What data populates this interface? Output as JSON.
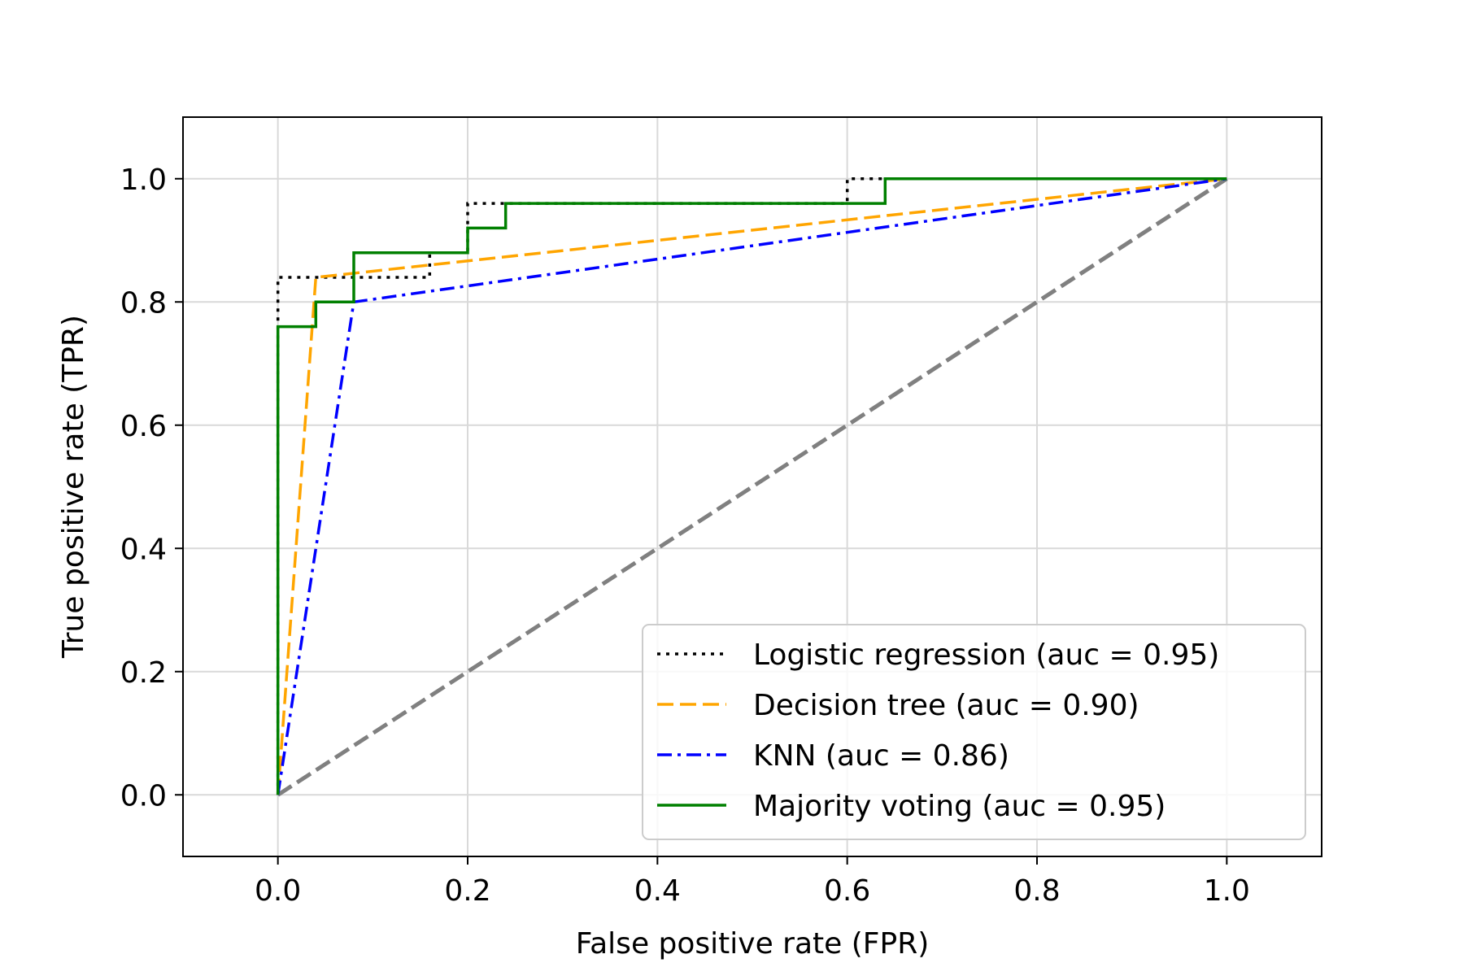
{
  "chart_data": {
    "type": "line",
    "title": "",
    "xlabel": "False positive rate (FPR)",
    "ylabel": "True positive rate (TPR)",
    "xlim": [
      -0.1,
      1.1
    ],
    "ylim": [
      -0.1,
      1.1
    ],
    "xticks": [
      0.0,
      0.2,
      0.4,
      0.6,
      0.8,
      1.0
    ],
    "yticks": [
      0.0,
      0.2,
      0.4,
      0.6,
      0.8,
      1.0
    ],
    "xtick_labels": [
      "0.0",
      "0.2",
      "0.4",
      "0.6",
      "0.8",
      "1.0"
    ],
    "ytick_labels": [
      "0.0",
      "0.2",
      "0.4",
      "0.6",
      "0.8",
      "1.0"
    ],
    "grid": true,
    "legend_position": "lower-right",
    "series": [
      {
        "name": "Logistic regression (auc = 0.95)",
        "color": "#000000",
        "style": "dotted",
        "x": [
          0.0,
          0.0,
          0.0,
          0.16,
          0.16,
          0.2,
          0.2,
          0.6,
          0.6,
          1.0
        ],
        "y": [
          0.0,
          0.76,
          0.84,
          0.84,
          0.88,
          0.88,
          0.96,
          0.96,
          1.0,
          1.0
        ]
      },
      {
        "name": "Decision tree (auc = 0.90)",
        "color": "#FFA500",
        "style": "dashed",
        "x": [
          0.0,
          0.04,
          1.0
        ],
        "y": [
          0.0,
          0.84,
          1.0
        ]
      },
      {
        "name": "KNN (auc = 0.86)",
        "color": "#0000FF",
        "style": "dashdot",
        "x": [
          0.0,
          0.08,
          1.0
        ],
        "y": [
          0.0,
          0.8,
          1.0
        ]
      },
      {
        "name": "Majority voting (auc = 0.95)",
        "color": "#008000",
        "style": "solid",
        "x": [
          0.0,
          0.0,
          0.04,
          0.04,
          0.08,
          0.08,
          0.2,
          0.2,
          0.24,
          0.24,
          0.64,
          0.64,
          1.0
        ],
        "y": [
          0.0,
          0.76,
          0.76,
          0.8,
          0.8,
          0.88,
          0.88,
          0.92,
          0.92,
          0.96,
          0.96,
          1.0,
          1.0
        ]
      }
    ],
    "reference_line": {
      "color": "#808080",
      "style": "dashed",
      "x": [
        0.0,
        1.0
      ],
      "y": [
        0.0,
        1.0
      ]
    }
  }
}
